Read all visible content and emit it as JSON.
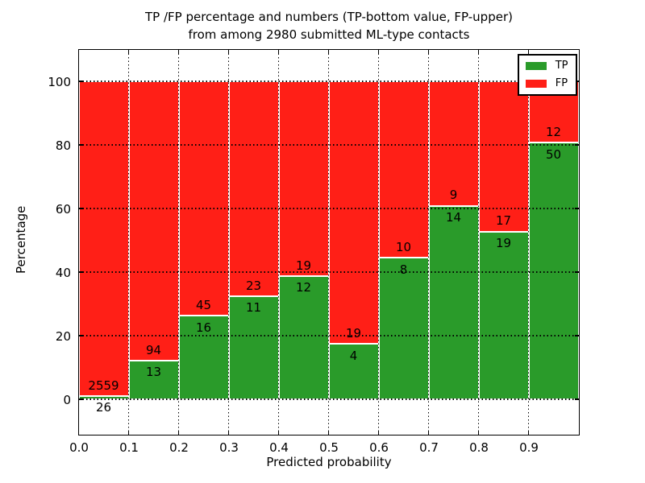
{
  "title": {
    "line1": "TP /FP percentage and numbers (TP-bottom value, FP-upper)",
    "line2": "from among 2980 submitted ML-type contacts"
  },
  "axes": {
    "xlabel": "Predicted probability",
    "ylabel": "Percentage"
  },
  "colors": {
    "tp": "#2a9b2a",
    "fp": "#ff1f17",
    "bar_edge": "#ffffff",
    "grid": "#000000",
    "axis": "#000000",
    "background": "#ffffff",
    "text": "#000000"
  },
  "chart_data": {
    "type": "bar",
    "stacked": true,
    "normalized": "percent of bin total",
    "title": "TP /FP percentage and numbers (TP-bottom value, FP-upper) from among 2980 submitted ML-type contacts",
    "xlabel": "Predicted probability",
    "ylabel": "Percentage",
    "xlim": [
      0.0,
      1.0
    ],
    "ylim": [
      -11,
      110
    ],
    "bin_width": 0.1,
    "grid": true,
    "grid_style": "dotted",
    "x_tick_labels": [
      "0.0",
      "0.1",
      "0.2",
      "0.3",
      "0.4",
      "0.5",
      "0.6",
      "0.7",
      "0.8",
      "0.9"
    ],
    "y_tick_values": [
      0,
      20,
      40,
      60,
      80,
      100
    ],
    "total_contacts": 2980,
    "bins": [
      {
        "x_start": 0.0,
        "tp": 26,
        "fp": 2559
      },
      {
        "x_start": 0.1,
        "tp": 13,
        "fp": 94
      },
      {
        "x_start": 0.2,
        "tp": 16,
        "fp": 45
      },
      {
        "x_start": 0.3,
        "tp": 11,
        "fp": 23
      },
      {
        "x_start": 0.4,
        "tp": 12,
        "fp": 19
      },
      {
        "x_start": 0.5,
        "tp": 4,
        "fp": 19
      },
      {
        "x_start": 0.6,
        "tp": 8,
        "fp": 10
      },
      {
        "x_start": 0.7,
        "tp": 14,
        "fp": 9
      },
      {
        "x_start": 0.8,
        "tp": 19,
        "fp": 17
      },
      {
        "x_start": 0.9,
        "tp": 50,
        "fp": 12
      }
    ],
    "series": [
      {
        "name": "TP",
        "color": "#2a9b2a",
        "values": [
          26,
          13,
          16,
          11,
          12,
          4,
          8,
          14,
          19,
          50
        ]
      },
      {
        "name": "FP",
        "color": "#ff1f17",
        "values": [
          2559,
          94,
          45,
          23,
          19,
          19,
          10,
          9,
          17,
          12
        ]
      }
    ],
    "legend": {
      "position": "upper right",
      "entries": [
        {
          "label": "TP",
          "color": "#2a9b2a"
        },
        {
          "label": "FP",
          "color": "#ff1f17"
        }
      ]
    }
  }
}
